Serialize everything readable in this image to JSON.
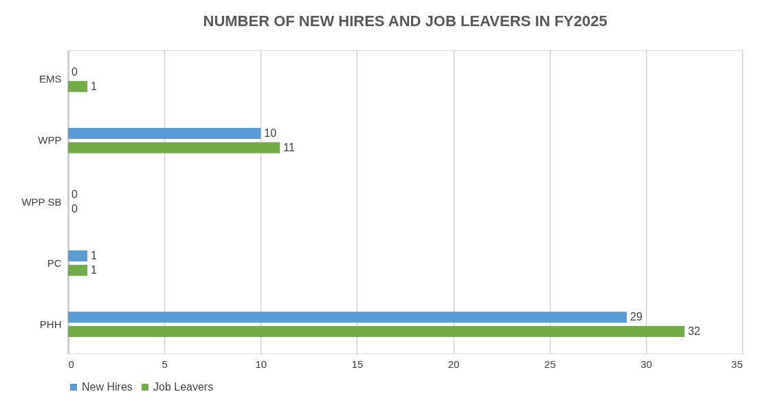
{
  "chart_data": {
    "type": "bar",
    "orientation": "horizontal",
    "title": "NUMBER OF NEW HIRES AND JOB LEAVERS IN FY2025",
    "categories": [
      "EMS",
      "WPP",
      "WPP SB",
      "PC",
      "PHH"
    ],
    "series": [
      {
        "name": "New Hires",
        "color": "#5b9bd5",
        "values": [
          0,
          10,
          0,
          1,
          29
        ]
      },
      {
        "name": "Job Leavers",
        "color": "#70ad47",
        "values": [
          1,
          11,
          0,
          1,
          32
        ]
      }
    ],
    "xlim": [
      0,
      35
    ],
    "xticks": [
      0,
      5,
      10,
      15,
      20,
      25,
      30,
      35
    ],
    "grid": "x",
    "legend": "bottom",
    "data_labels": true
  }
}
